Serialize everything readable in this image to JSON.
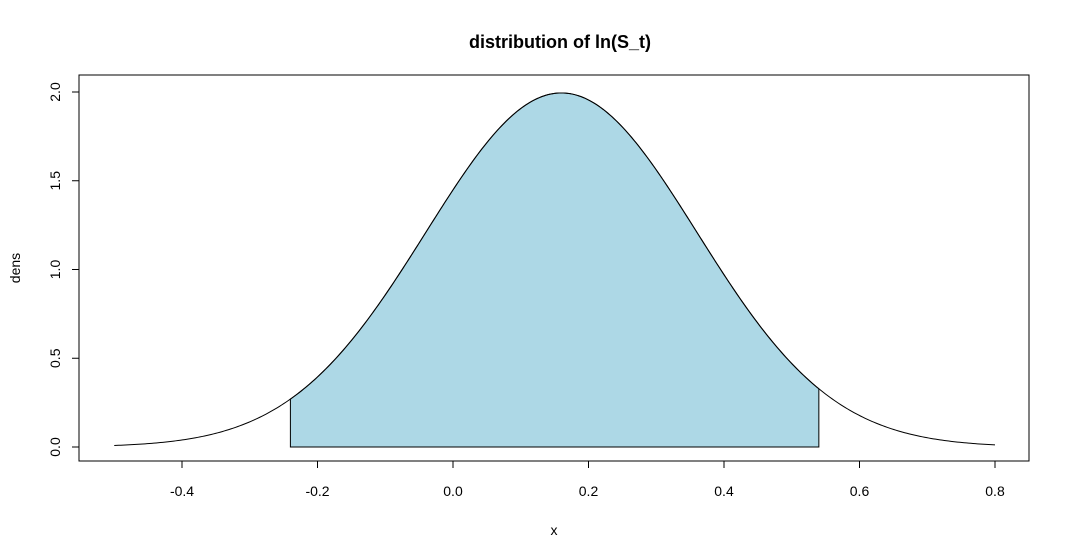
{
  "chart_data": {
    "type": "area",
    "title": "distribution of ln(S_t)",
    "xlabel": "x",
    "ylabel": "dens",
    "xlim": [
      -0.5,
      0.8
    ],
    "ylim": [
      0.0,
      2.0
    ],
    "x_ticks": [
      -0.4,
      -0.2,
      0.0,
      0.2,
      0.4,
      0.6,
      0.8
    ],
    "x_tick_labels": [
      "-0.4",
      "-0.2",
      "0.0",
      "0.2",
      "0.4",
      "0.6",
      "0.8"
    ],
    "y_ticks": [
      0.0,
      0.5,
      1.0,
      1.5,
      2.0
    ],
    "y_tick_labels": [
      "0.0",
      "0.5",
      "1.0",
      "1.5",
      "2.0"
    ],
    "curve": {
      "distribution": "normal",
      "mean": 0.16,
      "sd": 0.2,
      "x_range": [
        -0.5,
        0.8
      ]
    },
    "shaded_region": {
      "x_from": -0.24,
      "x_to": 0.54,
      "fill": "#add8e6"
    },
    "line_color": "#000000",
    "grid": false,
    "legend": "none"
  }
}
